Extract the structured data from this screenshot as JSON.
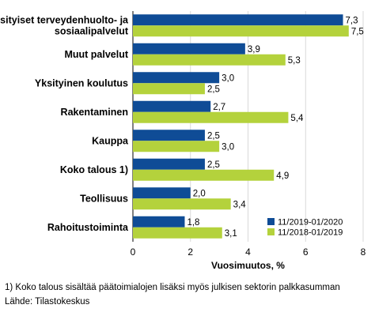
{
  "chart_data": {
    "type": "bar",
    "orientation": "horizontal",
    "categories": [
      [
        "Yksityiset terveydenhuolto- ja",
        "sosiaalipalvelut"
      ],
      [
        "Muut palvelut"
      ],
      [
        "Yksityinen koulutus"
      ],
      [
        "Rakentaminen"
      ],
      [
        "Kauppa"
      ],
      [
        "Koko talous 1)"
      ],
      [
        "Teollisuus"
      ],
      [
        "Rahoitustoiminta"
      ]
    ],
    "series": [
      {
        "name": "11/2019-01/2020",
        "color": "#0f4c96",
        "values": [
          7.3,
          3.9,
          3.0,
          2.7,
          2.5,
          2.5,
          2.0,
          1.8
        ],
        "labels": [
          "7,3",
          "3,9",
          "3,0",
          "2,7",
          "2,5",
          "2,5",
          "2,0",
          "1,8"
        ]
      },
      {
        "name": "11/2018-01/2019",
        "color": "#b4d23c",
        "values": [
          7.5,
          5.3,
          2.5,
          5.4,
          3.0,
          4.9,
          3.4,
          3.1
        ],
        "labels": [
          "7,5",
          "5,3",
          "2,5",
          "5,4",
          "3,0",
          "4,9",
          "3,4",
          "3,1"
        ]
      }
    ],
    "xlim": [
      0,
      8
    ],
    "xticks": [
      0,
      2,
      4,
      6,
      8
    ],
    "xlabel": "Vuosimuutos, %",
    "grid": "vertical",
    "legend_position": "bottom-right"
  },
  "footnotes": {
    "note": "1) Koko talous sisältää päätoimialojen lisäksi myös julkisen sektorin palkkasumman",
    "source": "Lähde: Tilastokeskus"
  }
}
